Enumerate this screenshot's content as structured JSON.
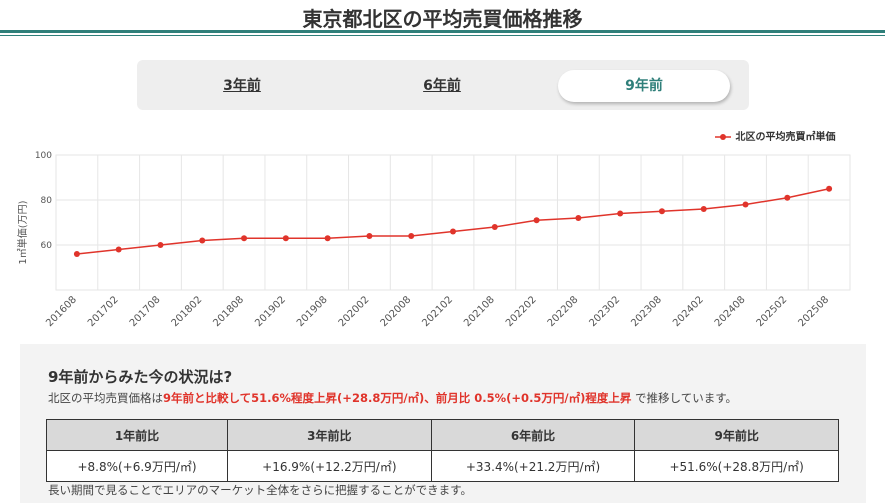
{
  "page": {
    "title": "東京都北区の平均売買価格推移"
  },
  "tabs": [
    {
      "label": "3年前",
      "active": false
    },
    {
      "label": "6年前",
      "active": false
    },
    {
      "label": "9年前",
      "active": true
    }
  ],
  "colors": {
    "accent": "#2f7f7a",
    "series": "#e0342b",
    "highlight": "#e0342b"
  },
  "chart_data": {
    "type": "line",
    "ylabel": "1㎡単価(万円)",
    "ylim": [
      40,
      100
    ],
    "yticks": [
      60,
      80,
      100
    ],
    "grid": true,
    "legend_position": "top-right",
    "categories": [
      "201608",
      "201702",
      "201708",
      "201802",
      "201808",
      "201902",
      "201908",
      "202002",
      "202008",
      "202102",
      "202108",
      "202202",
      "202208",
      "202302",
      "202308",
      "202402",
      "202408",
      "202502",
      "202508"
    ],
    "series": [
      {
        "name": "北区の平均売買㎡単価",
        "values": [
          56,
          58,
          60,
          62,
          63,
          63,
          63,
          64,
          64,
          66,
          68,
          71,
          72,
          74,
          75,
          76,
          78,
          81,
          85
        ]
      }
    ]
  },
  "summary": {
    "heading": "9年前からみた今の状況は?",
    "prefix": "北区の平均売買価格は",
    "highlight": "9年前と比較して51.6%程度上昇(+28.8万円/㎡)、前月比 0.5%(+0.5万円/㎡)程度上昇",
    "suffix": " で推移しています。"
  },
  "comparison": {
    "headers": [
      "1年前比",
      "3年前比",
      "6年前比",
      "9年前比"
    ],
    "values": [
      "+8.8%(+6.9万円/㎡)",
      "+16.9%(+12.2万円/㎡)",
      "+33.4%(+21.2万円/㎡)",
      "+51.6%(+28.8万円/㎡)"
    ]
  },
  "note": "長い期間で見ることでエリアのマーケット全体をさらに把握することができます。"
}
